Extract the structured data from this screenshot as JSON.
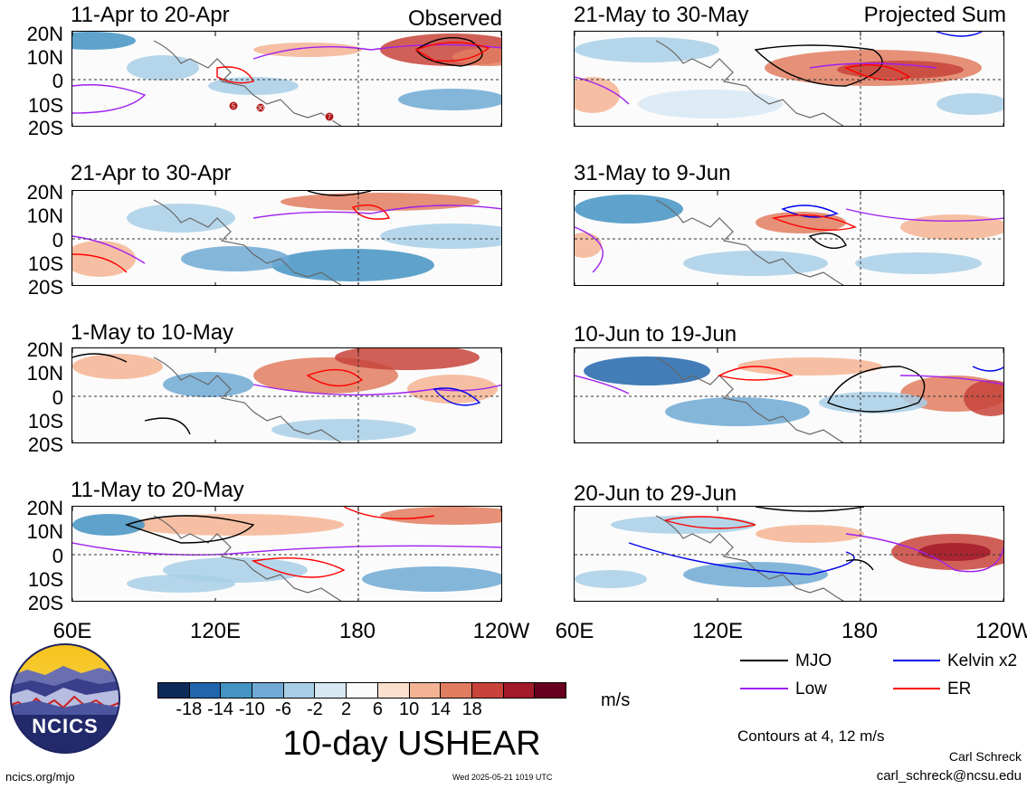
{
  "header": {
    "observed_label": "Observed",
    "projected_label": "Projected Sum"
  },
  "panels": [
    {
      "title": "11-Apr to 20-Apr",
      "kind": "observed"
    },
    {
      "title": "21-Apr to 30-Apr",
      "kind": "observed"
    },
    {
      "title": "1-May to 10-May",
      "kind": "observed"
    },
    {
      "title": "11-May to 20-May",
      "kind": "observed"
    },
    {
      "title": "21-May to 30-May",
      "kind": "projected"
    },
    {
      "title": "31-May to 9-Jun",
      "kind": "projected"
    },
    {
      "title": "10-Jun to 19-Jun",
      "kind": "projected"
    },
    {
      "title": "20-Jun to 29-Jun",
      "kind": "projected"
    }
  ],
  "lat_labels": [
    "20N",
    "10N",
    "0",
    "10S",
    "20S"
  ],
  "lon_labels": [
    "60E",
    "120E",
    "180",
    "120W"
  ],
  "colorbar": {
    "ticks": [
      "-18",
      "-14",
      "-10",
      "-6",
      "-2",
      "2",
      "6",
      "10",
      "14",
      "18"
    ],
    "unit": "m/s",
    "colors": [
      "#0d2b5a",
      "#2166ac",
      "#4393c3",
      "#6fa9d4",
      "#a8cfe6",
      "#d7e8f3",
      "#fbfbfb",
      "#fbe0cd",
      "#f4b493",
      "#e07c5f",
      "#c8443a",
      "#a31a2a",
      "#67001f"
    ]
  },
  "main_title": "10-day USHEAR",
  "legend": {
    "items": [
      {
        "label": "MJO",
        "color": "#000000"
      },
      {
        "label": "Kelvin x2",
        "color": "#0000ee"
      },
      {
        "label": "Low",
        "color": "#a020f0"
      },
      {
        "label": "ER",
        "color": "#ff0000"
      }
    ],
    "contours_note": "Contours at 4, 12 m/s"
  },
  "author": {
    "name": "Carl Schreck",
    "email": "carl_schreck@ncsu.edu"
  },
  "footer": {
    "url": "ncics.org/mjo",
    "timestamp": "Wed 2025-05-21 1019 UTC"
  },
  "logo": {
    "text": "NCICS"
  },
  "storm_markers": [
    "5",
    "30",
    "7"
  ]
}
